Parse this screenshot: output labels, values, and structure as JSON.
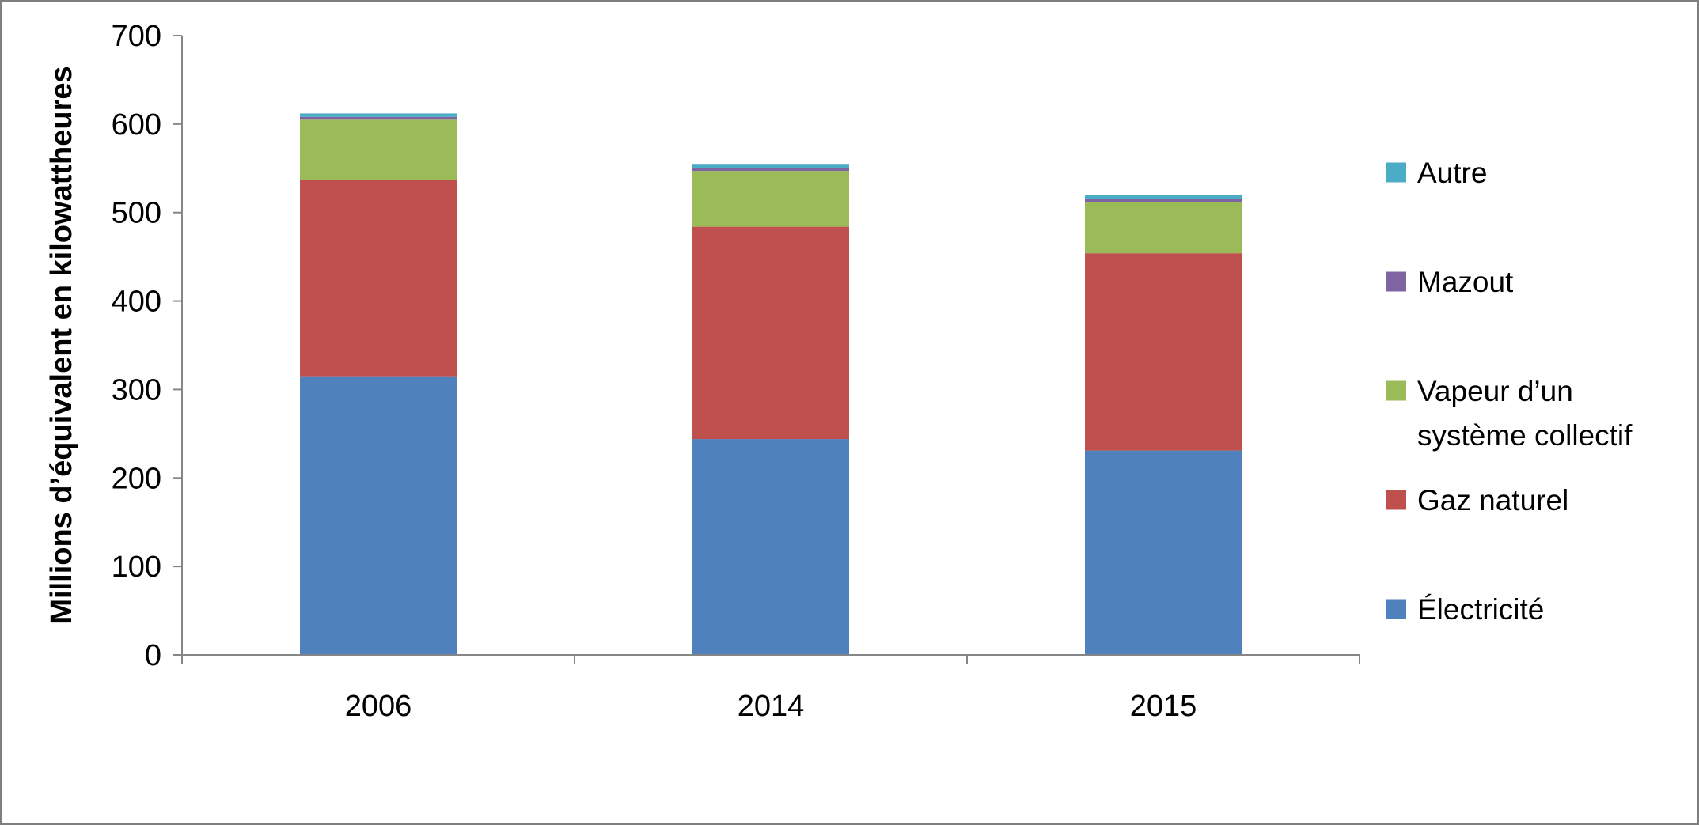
{
  "chart_data": {
    "type": "bar",
    "stacked": true,
    "title": "",
    "xlabel": "",
    "ylabel": "Millions d’équivalent en kilowattheures",
    "ylim": [
      0,
      700
    ],
    "yticks": [
      "0",
      "100",
      "200",
      "300",
      "400",
      "500",
      "600",
      "700"
    ],
    "categories": [
      "2006",
      "2014",
      "2015"
    ],
    "grid": false,
    "legend_position": "right",
    "series": [
      {
        "name": "Électricité",
        "color": "#4f81bd",
        "values": [
          315,
          244,
          231
        ]
      },
      {
        "name": "Gaz naturel",
        "color": "#c0504d",
        "values": [
          222,
          240,
          223
        ]
      },
      {
        "name": "Vapeur d’un système collectif",
        "color": "#9bbb59",
        "values": [
          68,
          63,
          58
        ]
      },
      {
        "name": "Mazout",
        "color": "#8064a2",
        "values": [
          3,
          3,
          3
        ]
      },
      {
        "name": "Autre",
        "color": "#4bacc6",
        "values": [
          4,
          5,
          5
        ]
      }
    ],
    "legend_lines": {
      "Vapeur d’un système collectif": [
        "Vapeur d’un",
        "système collectif"
      ]
    }
  }
}
